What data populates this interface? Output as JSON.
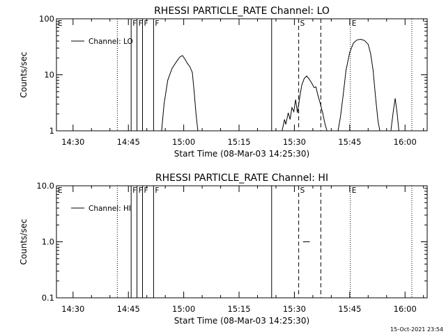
{
  "colors": {
    "background": "#ffffff",
    "foreground": "#000000"
  },
  "footer": {
    "timestamp": "15-Oct-2021 23:54"
  },
  "chart_data": [
    {
      "type": "line",
      "title": "RHESSI PARTICLE_RATE Channel: LO",
      "xlabel": "Start Time (08-Mar-03 14:25:30)",
      "ylabel": "Counts/sec",
      "yscale": "log",
      "xlim": [
        "14:25:30",
        "16:06:00"
      ],
      "ylim": [
        1,
        100
      ],
      "x_ticks": [
        "14:30",
        "14:45",
        "15:00",
        "15:15",
        "15:30",
        "15:45",
        "16:00"
      ],
      "y_ticks": [
        {
          "value": 1,
          "label": "1"
        },
        {
          "value": 10,
          "label": "10"
        },
        {
          "value": 100,
          "label": "100"
        }
      ],
      "grid": false,
      "legend": {
        "placement": "top-left",
        "entries": [
          "Channel: LO"
        ]
      },
      "markers": [
        {
          "time": "14:42:00",
          "label": "",
          "style": "dotted"
        },
        {
          "time": "14:45:45",
          "label": "F",
          "style": "solid"
        },
        {
          "time": "14:47:20",
          "label": "F",
          "style": "solid"
        },
        {
          "time": "14:48:50",
          "label": "F",
          "style": "solid"
        },
        {
          "time": "14:51:50",
          "label": "F",
          "style": "solid"
        },
        {
          "time": "15:23:50",
          "label": "",
          "style": "solid"
        },
        {
          "time": "15:31:10",
          "label": "S",
          "style": "dashed"
        },
        {
          "time": "15:37:10",
          "label": "",
          "style": "dashed"
        },
        {
          "time": "15:45:10",
          "label": "E",
          "style": "dotted"
        },
        {
          "time": "16:01:50",
          "label": "",
          "style": "dotted"
        }
      ],
      "corner_marker": "E",
      "series": [
        {
          "name": "Channel: LO",
          "segments": [
            [
              [
                "14:54:00",
                1
              ],
              [
                "14:54:40",
                3
              ],
              [
                "14:55:40",
                8
              ],
              [
                "14:56:50",
                13
              ],
              [
                "14:58:00",
                17
              ],
              [
                "14:59:00",
                21
              ],
              [
                "14:59:40",
                22
              ],
              [
                "15:00:20",
                19
              ],
              [
                "15:01:00",
                16
              ],
              [
                "15:01:40",
                14
              ],
              [
                "15:02:20",
                11
              ],
              [
                "15:02:50",
                5
              ],
              [
                "15:03:20",
                2
              ],
              [
                "15:03:50",
                1
              ]
            ],
            [
              [
                "15:26:40",
                1
              ],
              [
                "15:27:20",
                1.6
              ],
              [
                "15:27:40",
                1.3
              ],
              [
                "15:28:20",
                2.1
              ],
              [
                "15:28:50",
                1.6
              ],
              [
                "15:29:20",
                2.6
              ],
              [
                "15:29:50",
                2.2
              ],
              [
                "15:30:20",
                3.6
              ],
              [
                "15:30:50",
                2.1
              ],
              [
                "15:31:30",
                4.2
              ],
              [
                "15:32:00",
                6.5
              ],
              [
                "15:32:40",
                8.6
              ],
              [
                "15:33:20",
                9.5
              ],
              [
                "15:34:00",
                8.4
              ],
              [
                "15:34:40",
                7.2
              ],
              [
                "15:35:20",
                5.9
              ],
              [
                "15:35:50",
                6.1
              ],
              [
                "15:36:20",
                4.4
              ],
              [
                "15:37:00",
                3.1
              ],
              [
                "15:37:40",
                2.1
              ],
              [
                "15:38:20",
                1.3
              ],
              [
                "15:38:50",
                1
              ]
            ],
            [
              [
                "15:41:50",
                1
              ],
              [
                "15:42:30",
                1.8
              ],
              [
                "15:43:10",
                4
              ],
              [
                "15:44:00",
                12
              ],
              [
                "15:45:00",
                25
              ],
              [
                "15:46:00",
                37
              ],
              [
                "15:47:00",
                42
              ],
              [
                "15:48:00",
                43
              ],
              [
                "15:49:00",
                41
              ],
              [
                "15:50:00",
                35
              ],
              [
                "15:50:40",
                24
              ],
              [
                "15:51:20",
                12
              ],
              [
                "15:52:00",
                4
              ],
              [
                "15:52:40",
                1.5
              ],
              [
                "15:53:10",
                1
              ]
            ],
            [
              [
                "15:56:10",
                1
              ],
              [
                "15:56:50",
                2.3
              ],
              [
                "15:57:20",
                3.8
              ],
              [
                "15:57:50",
                2.1
              ],
              [
                "15:58:20",
                1
              ]
            ]
          ]
        }
      ]
    },
    {
      "type": "line",
      "title": "RHESSI PARTICLE_RATE Channel: HI",
      "xlabel": "Start Time (08-Mar-03 14:25:30)",
      "ylabel": "Counts/sec",
      "yscale": "log",
      "xlim": [
        "14:25:30",
        "16:06:00"
      ],
      "ylim": [
        0.1,
        10
      ],
      "x_ticks": [
        "14:30",
        "14:45",
        "15:00",
        "15:15",
        "15:30",
        "15:45",
        "16:00"
      ],
      "y_ticks": [
        {
          "value": 0.1,
          "label": "0.1"
        },
        {
          "value": 1,
          "label": "1.0"
        },
        {
          "value": 10,
          "label": "10.0"
        }
      ],
      "grid": false,
      "legend": {
        "placement": "top-left",
        "entries": [
          "Channel: HI"
        ]
      },
      "markers": [
        {
          "time": "14:42:00",
          "label": "",
          "style": "dotted"
        },
        {
          "time": "14:45:45",
          "label": "F",
          "style": "solid"
        },
        {
          "time": "14:47:20",
          "label": "F",
          "style": "solid"
        },
        {
          "time": "14:48:50",
          "label": "F",
          "style": "solid"
        },
        {
          "time": "14:51:50",
          "label": "F",
          "style": "solid"
        },
        {
          "time": "15:23:50",
          "label": "",
          "style": "solid"
        },
        {
          "time": "15:31:10",
          "label": "S",
          "style": "dashed"
        },
        {
          "time": "15:37:10",
          "label": "",
          "style": "dashed"
        },
        {
          "time": "15:45:10",
          "label": "E",
          "style": "dotted"
        },
        {
          "time": "16:01:50",
          "label": "",
          "style": "dotted"
        }
      ],
      "corner_marker": "E",
      "series": [
        {
          "name": "Channel: HI",
          "segments": [
            [
              [
                "15:32:20",
                1
              ],
              [
                "15:34:10",
                1
              ]
            ]
          ]
        }
      ]
    }
  ]
}
